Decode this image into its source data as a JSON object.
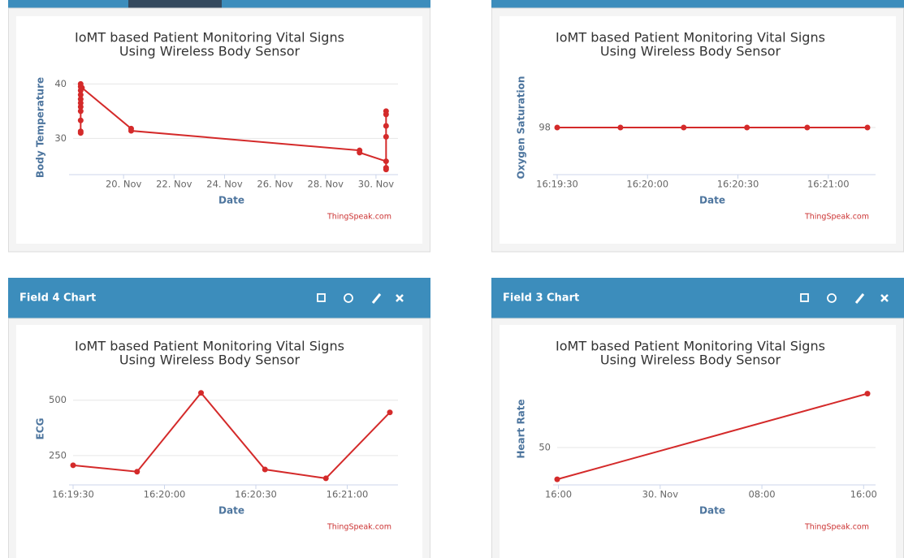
{
  "panel_headers": [
    "Field 4 Chart",
    "Field 3 Chart"
  ],
  "chart_data": [
    {
      "type": "line",
      "title": [
        "IoMT based Patient Monitoring Vital Signs",
        "Using Wireless Body Sensor"
      ],
      "x_label": "Date",
      "y_label": "Body Temperature",
      "credits": "ThingSpeak.com",
      "color": "#d42a2a",
      "x": [
        18.3,
        18.3,
        18.3,
        18.3,
        18.3,
        18.3,
        18.3,
        18.3,
        18.3,
        18.3,
        18.3,
        18.35,
        20.3,
        20.3,
        29.35,
        29.35,
        30.4,
        30.4,
        30.4,
        30.4,
        30.4,
        30.4,
        30.4
      ],
      "values": [
        31,
        31.3,
        33.3,
        35,
        35.8,
        36.5,
        37.2,
        38,
        38.8,
        39.5,
        40,
        39.3,
        31.8,
        31.4,
        27.8,
        27.4,
        25.8,
        24.3,
        24.6,
        30.3,
        32.3,
        34.4,
        35
      ],
      "xlim": [
        18,
        30.55
      ],
      "xticks": [
        {
          "value": 20,
          "label": "20. Nov"
        },
        {
          "value": 22,
          "label": "22. Nov"
        },
        {
          "value": 24,
          "label": "24. Nov"
        },
        {
          "value": 26,
          "label": "26. Nov"
        },
        {
          "value": 28,
          "label": "28. Nov"
        },
        {
          "value": 30,
          "label": "30. Nov"
        }
      ],
      "ylim": [
        23.5,
        40.5
      ],
      "yticks": [
        30,
        40
      ],
      "grid": true
    },
    {
      "type": "line",
      "title": [
        "IoMT based Patient Monitoring Vital Signs",
        "Using Wireless Body Sensor"
      ],
      "x_label": "Date",
      "y_label": "Oxygen Saturation",
      "credits": "ThingSpeak.com",
      "color": "#d42a2a",
      "x": [
        "16:19:30",
        "16:19:51",
        "16:20:12",
        "16:20:33",
        "16:20:53",
        "16:21:13"
      ],
      "values": [
        98,
        98,
        98,
        98,
        98,
        98
      ],
      "xlim": [
        "16:19:30",
        "16:21:13"
      ],
      "xticks": [
        "16:19:30",
        "16:20:00",
        "16:20:30",
        "16:21:00"
      ],
      "ylim": [
        97.5,
        98.5
      ],
      "yticks": [
        98
      ],
      "grid": true
    },
    {
      "type": "line",
      "title": [
        "IoMT based Patient Monitoring Vital Signs",
        "Using Wireless Body Sensor"
      ],
      "x_label": "Date",
      "y_label": "ECG",
      "credits": "ThingSpeak.com",
      "color": "#d42a2a",
      "x": [
        "16:19:30",
        "16:19:51",
        "16:20:12",
        "16:20:33",
        "16:20:53",
        "16:21:14"
      ],
      "values": [
        206,
        177,
        533,
        187,
        147,
        445
      ],
      "xlim": [
        "16:19:30",
        "16:21:14"
      ],
      "xticks": [
        "16:19:30",
        "16:20:00",
        "16:20:30",
        "16:21:00"
      ],
      "ylim": [
        121,
        620
      ],
      "yticks": [
        250,
        500
      ],
      "grid": true
    },
    {
      "type": "line",
      "title": [
        "IoMT based Patient Monitoring Vital Signs",
        "Using Wireless Body Sensor"
      ],
      "x_label": "Date",
      "y_label": "Heart Rate",
      "credits": "ThingSpeak.com",
      "color": "#d42a2a",
      "x": [
        15.9,
        40.3
      ],
      "values": [
        40,
        67
      ],
      "xlim": [
        15.9,
        40.3
      ],
      "xticks": [
        {
          "value": 16,
          "label": "16:00"
        },
        {
          "value": 24,
          "label": "30. Nov"
        },
        {
          "value": 32,
          "label": "08:00"
        },
        {
          "value": 40,
          "label": "16:00"
        }
      ],
      "ylim": [
        38.5,
        73.3
      ],
      "yticks": [
        50
      ],
      "grid": true
    }
  ]
}
